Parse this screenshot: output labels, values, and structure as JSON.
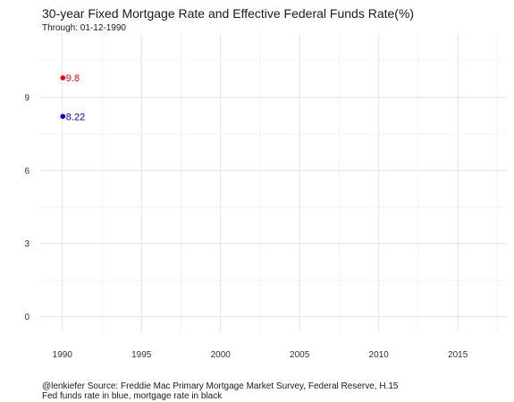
{
  "title": "30-year Fixed Mortgage Rate and Effective Federal Funds Rate(%)",
  "subtitle": "Through: 01-12-1990",
  "caption_line1": "@lenkiefer Source: Freddie Mac Primary Mortgage Market Survey, Federal Reserve, H.15",
  "caption_line2": "Fed funds rate in blue, mortgage rate in black",
  "colors": {
    "mortgage": "#ff0000",
    "fedfunds": "#0000cc",
    "grid_major": "#e3e3e3",
    "grid_minor": "#f0f0f0"
  },
  "chart_data": {
    "type": "scatter",
    "title": "30-year Fixed Mortgage Rate and Effective Federal Funds Rate(%)",
    "subtitle": "Through: 01-12-1990",
    "xlabel": "",
    "ylabel": "",
    "xlim": [
      1988.6,
      2018.1
    ],
    "ylim": [
      -0.6,
      11.6
    ],
    "x_ticks": [
      1990,
      1995,
      2000,
      2005,
      2010,
      2015
    ],
    "y_ticks": [
      0,
      3,
      6,
      9
    ],
    "grid": true,
    "legend": "none",
    "series": [
      {
        "key": "mortgage",
        "points": [
          {
            "x": 1990.03,
            "y": 9.8,
            "label": "9.8"
          }
        ]
      },
      {
        "key": "fedfunds",
        "points": [
          {
            "x": 1990.03,
            "y": 8.22,
            "label": "8.22"
          }
        ]
      }
    ]
  }
}
